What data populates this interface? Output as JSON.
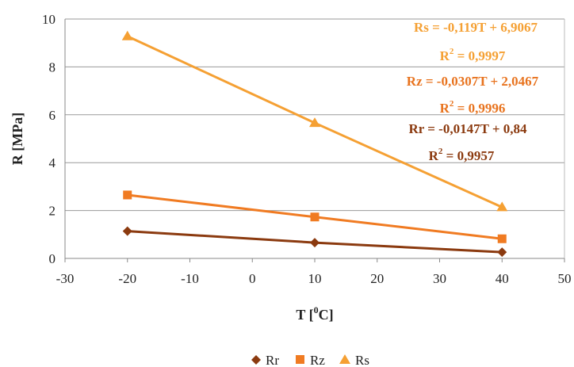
{
  "chart_data": {
    "type": "line",
    "xlabel": "T [",
    "xlabel_sup": "0",
    "xlabel_end": "C]",
    "ylabel": "R [MPa]",
    "xlim": [
      -30,
      50
    ],
    "ylim": [
      0,
      10
    ],
    "x_ticks": [
      -30,
      -20,
      -10,
      0,
      10,
      20,
      30,
      40,
      50
    ],
    "y_ticks": [
      0,
      2,
      4,
      6,
      8,
      10
    ],
    "x": [
      -20,
      10,
      40
    ],
    "grid": true,
    "legend_position": "bottom",
    "series": [
      {
        "name": "Rr",
        "values": [
          1.14,
          0.66,
          0.26
        ],
        "color": "#8B3A0F",
        "marker": "diamond"
      },
      {
        "name": "Rz",
        "values": [
          2.65,
          1.73,
          0.82
        ],
        "color": "#F07B22",
        "marker": "square"
      },
      {
        "name": "Rs",
        "values": [
          9.28,
          5.66,
          2.14
        ],
        "color": "#F5A033",
        "marker": "triangle"
      }
    ],
    "annotations": [
      {
        "equation": "Rs = -0,119T + 6,9067",
        "r2_label": "R",
        "r2_sup": "2",
        "r2_value": " = 0,9997",
        "color": "#F5A033"
      },
      {
        "equation": "Rz = -0,0307T + 2,0467",
        "r2_label": "R",
        "r2_sup": "2",
        "r2_value": " = 0,9996",
        "color": "#E8731E"
      },
      {
        "equation": "Rr = -0,0147T + 0,84",
        "r2_label": "R",
        "r2_sup": "2",
        "r2_value": " = 0,9957",
        "color": "#8B3A0F"
      }
    ]
  }
}
